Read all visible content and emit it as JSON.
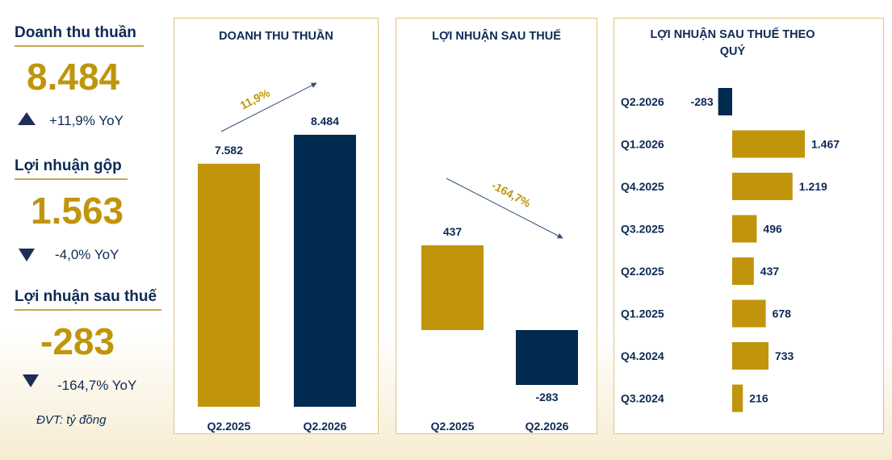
{
  "kpis": [
    {
      "label": "Doanh thu thuần",
      "value": "8.484",
      "change": "+11,9% YoY",
      "direction": "up"
    },
    {
      "label": "Lợi nhuận gộp",
      "value": "1.563",
      "change": "-4,0% YoY",
      "direction": "down"
    },
    {
      "label": "Lợi nhuận sau thuế",
      "value": "-283",
      "change": "-164,7% YoY",
      "direction": "down"
    }
  ],
  "unit_note": "ĐVT: tỷ đồng",
  "colors": {
    "gold": "#c0950c",
    "navy": "#002a50",
    "text": "#0d2a55"
  },
  "chart_data": [
    {
      "type": "bar",
      "title": "DOANH THU THUẦN",
      "categories": [
        "Q2.2025",
        "Q2.2026"
      ],
      "values": [
        7582,
        8484
      ],
      "value_labels": [
        "7.582",
        "8.484"
      ],
      "trend_label": "11,9%",
      "ylim": [
        0,
        10000
      ]
    },
    {
      "type": "bar",
      "title": "LỢI NHUẬN SAU THUẾ",
      "categories": [
        "Q2.2025",
        "Q2.2026"
      ],
      "values": [
        437,
        -283
      ],
      "value_labels": [
        "437",
        "-283"
      ],
      "trend_label": "-164,7%",
      "ylim": [
        -450,
        900
      ]
    },
    {
      "type": "bar",
      "orientation": "horizontal",
      "title": "LỢI NHUẬN SAU THUẾ THEO QUÝ",
      "categories": [
        "Q2.2026",
        "Q1.2026",
        "Q4.2025",
        "Q3.2025",
        "Q2.2025",
        "Q1.2025",
        "Q4.2024",
        "Q3.2024"
      ],
      "values": [
        -283,
        1467,
        1219,
        496,
        437,
        678,
        733,
        216
      ],
      "value_labels": [
        "-283",
        "1.467",
        "1.219",
        "496",
        "437",
        "678",
        "733",
        "216"
      ]
    }
  ]
}
